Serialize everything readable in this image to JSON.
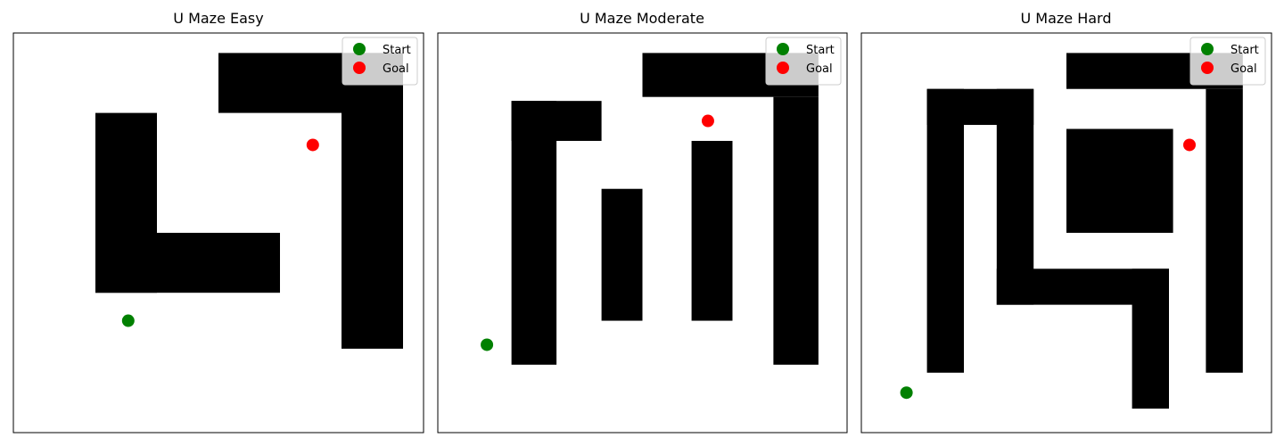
{
  "chart_data": [
    {
      "type": "scatter",
      "title": "U Maze Easy",
      "xlim": [
        0,
        10
      ],
      "ylim": [
        0,
        10
      ],
      "grid": false,
      "legend_location": "top-right",
      "walls": [
        {
          "x": [
            5,
            9
          ],
          "y": [
            8.0,
            9.5
          ]
        },
        {
          "x": [
            8,
            9.5
          ],
          "y": [
            2.1,
            9.5
          ]
        },
        {
          "x": [
            2,
            3.5
          ],
          "y": [
            3.5,
            8.0
          ]
        },
        {
          "x": [
            2,
            6.5
          ],
          "y": [
            3.5,
            5.0
          ]
        }
      ],
      "series": [
        {
          "name": "Start",
          "color": "#008000",
          "x": [
            2.8
          ],
          "y": [
            2.8
          ]
        },
        {
          "name": "Goal",
          "color": "#ff0000",
          "x": [
            7.3
          ],
          "y": [
            7.2
          ]
        }
      ]
    },
    {
      "type": "scatter",
      "title": "U Maze Moderate",
      "xlim": [
        0,
        10
      ],
      "ylim": [
        0,
        10
      ],
      "grid": false,
      "legend_location": "top-right",
      "walls": [
        {
          "x": [
            5,
            9.3
          ],
          "y": [
            8.4,
            9.5
          ]
        },
        {
          "x": [
            8.2,
            9.3
          ],
          "y": [
            1.7,
            8.4
          ]
        },
        {
          "x": [
            1.8,
            2.9
          ],
          "y": [
            1.7,
            8.3
          ]
        },
        {
          "x": [
            1.8,
            4.0
          ],
          "y": [
            7.3,
            8.3
          ]
        },
        {
          "x": [
            4.0,
            5.0
          ],
          "y": [
            2.8,
            6.1
          ]
        },
        {
          "x": [
            6.2,
            7.2
          ],
          "y": [
            2.8,
            7.3
          ]
        }
      ],
      "series": [
        {
          "name": "Start",
          "color": "#008000",
          "x": [
            1.2
          ],
          "y": [
            2.2
          ]
        },
        {
          "name": "Goal",
          "color": "#ff0000",
          "x": [
            6.6
          ],
          "y": [
            7.8
          ]
        }
      ]
    },
    {
      "type": "scatter",
      "title": "U Maze Hard",
      "xlim": [
        0,
        10
      ],
      "ylim": [
        0,
        10
      ],
      "grid": false,
      "legend_location": "top-right",
      "walls": [
        {
          "x": [
            5,
            9.3
          ],
          "y": [
            8.6,
            9.5
          ]
        },
        {
          "x": [
            8.4,
            9.3
          ],
          "y": [
            1.5,
            8.6
          ]
        },
        {
          "x": [
            1.6,
            4.2
          ],
          "y": [
            7.7,
            8.6
          ]
        },
        {
          "x": [
            1.6,
            2.5
          ],
          "y": [
            1.5,
            8.6
          ]
        },
        {
          "x": [
            3.3,
            4.2
          ],
          "y": [
            3.2,
            8.6
          ]
        },
        {
          "x": [
            3.3,
            7.5
          ],
          "y": [
            3.2,
            4.1
          ]
        },
        {
          "x": [
            6.6,
            7.5
          ],
          "y": [
            0.6,
            4.1
          ]
        },
        {
          "x": [
            5.0,
            7.6
          ],
          "y": [
            5.0,
            7.6
          ]
        }
      ],
      "series": [
        {
          "name": "Start",
          "color": "#008000",
          "x": [
            1.1
          ],
          "y": [
            1.0
          ]
        },
        {
          "name": "Goal",
          "color": "#ff0000",
          "x": [
            8.0
          ],
          "y": [
            7.2
          ]
        }
      ]
    }
  ]
}
